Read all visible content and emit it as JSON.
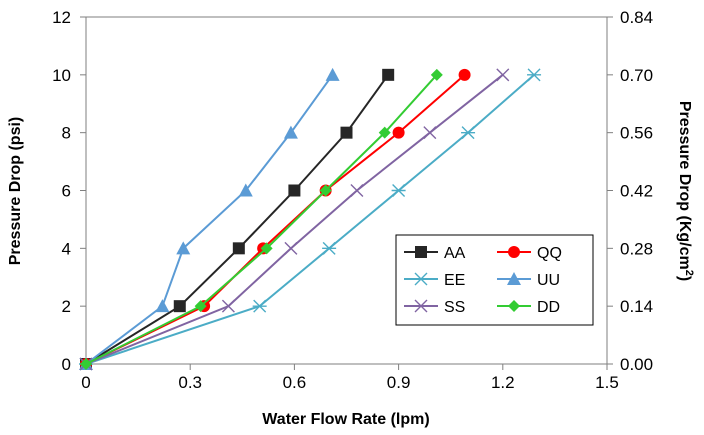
{
  "chart_data": {
    "type": "line",
    "xlabel": "Water Flow Rate (lpm)",
    "ylabel": "Pressure Drop  (psi)",
    "y2label": "Pressure Drop (Kg/cm",
    "y2label_sup": "2",
    "y2label_end": ")",
    "xlim": [
      0,
      1.5
    ],
    "ylim": [
      0,
      12
    ],
    "y2lim": [
      0,
      0.84
    ],
    "x_ticks": [
      "0",
      "0.3",
      "0.6",
      "0.9",
      "1.2",
      "1.5"
    ],
    "x_tick_values": [
      0,
      0.3,
      0.6,
      0.9,
      1.2,
      1.5
    ],
    "y_ticks": [
      "0",
      "2",
      "4",
      "6",
      "8",
      "10",
      "12"
    ],
    "y_tick_values": [
      0,
      2,
      4,
      6,
      8,
      10,
      12
    ],
    "y2_ticks": [
      "0.00",
      "0.14",
      "0.28",
      "0.42",
      "0.56",
      "0.70",
      "0.84"
    ],
    "grid": false,
    "legend_position": "bottom-right",
    "series": [
      {
        "name": "AA",
        "color": "#262626",
        "marker": "square",
        "points": [
          [
            0,
            0
          ],
          [
            0.27,
            2
          ],
          [
            0.44,
            4
          ],
          [
            0.6,
            6
          ],
          [
            0.75,
            8
          ],
          [
            0.87,
            10
          ]
        ]
      },
      {
        "name": "QQ",
        "color": "#ff0000",
        "marker": "circle",
        "points": [
          [
            0,
            0
          ],
          [
            0.34,
            2
          ],
          [
            0.51,
            4
          ],
          [
            0.69,
            6
          ],
          [
            0.9,
            8
          ],
          [
            1.09,
            10
          ]
        ]
      },
      {
        "name": "EE",
        "color": "#4bacc6",
        "marker": "asterisk",
        "points": [
          [
            0,
            0
          ],
          [
            0.5,
            2
          ],
          [
            0.7,
            4
          ],
          [
            0.9,
            6
          ],
          [
            1.1,
            8
          ],
          [
            1.29,
            10
          ]
        ]
      },
      {
        "name": "UU",
        "color": "#5b9bd5",
        "marker": "triangle",
        "points": [
          [
            0,
            0
          ],
          [
            0.22,
            2
          ],
          [
            0.28,
            4
          ],
          [
            0.46,
            6
          ],
          [
            0.59,
            8
          ],
          [
            0.71,
            10
          ]
        ]
      },
      {
        "name": "SS",
        "color": "#8064a2",
        "marker": "x",
        "points": [
          [
            0,
            0
          ],
          [
            0.41,
            2
          ],
          [
            0.59,
            4
          ],
          [
            0.78,
            6
          ],
          [
            0.99,
            8
          ],
          [
            1.2,
            10
          ]
        ]
      },
      {
        "name": "DD",
        "color": "#33cc33",
        "marker": "diamond",
        "points": [
          [
            0,
            0
          ],
          [
            0.33,
            2
          ],
          [
            0.52,
            4
          ],
          [
            0.69,
            6
          ],
          [
            0.86,
            8
          ],
          [
            1.01,
            10
          ]
        ]
      }
    ]
  }
}
